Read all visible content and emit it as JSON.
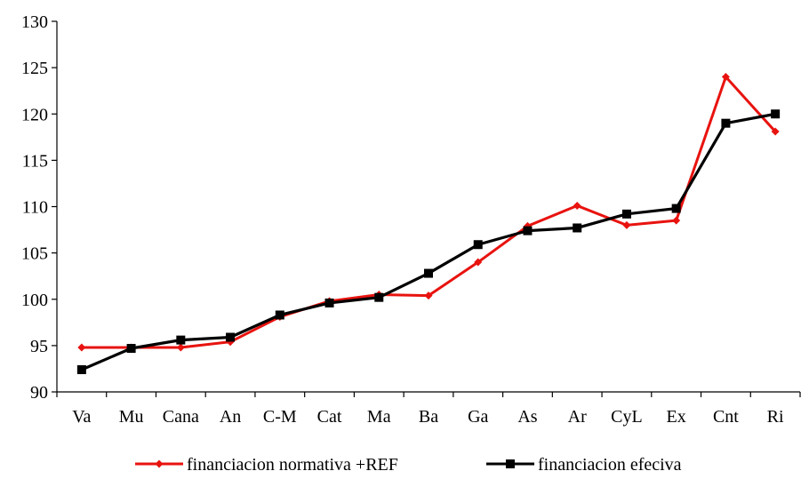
{
  "chart_data": {
    "type": "line",
    "title": "",
    "xlabel": "",
    "ylabel": "",
    "categories": [
      "Va",
      "Mu",
      "Cana",
      "An",
      "C-M",
      "Cat",
      "Ma",
      "Ba",
      "Ga",
      "As",
      "Ar",
      "CyL",
      "Ex",
      "Cnt",
      "Ri"
    ],
    "ylim": [
      90,
      130
    ],
    "yticks": [
      90,
      95,
      100,
      105,
      110,
      115,
      120,
      125,
      130
    ],
    "grid": false,
    "legend_position": "bottom",
    "series": [
      {
        "name": "financiacion normativa +REF",
        "color": "#e8130f",
        "marker": "diamond",
        "values": [
          94.8,
          94.8,
          94.8,
          95.4,
          98.1,
          99.8,
          100.5,
          100.4,
          104.0,
          107.9,
          110.1,
          108.0,
          108.5,
          124.0,
          118.1
        ]
      },
      {
        "name": "financiacion efeciva",
        "color": "#000000",
        "marker": "square",
        "values": [
          92.4,
          94.7,
          95.6,
          95.9,
          98.3,
          99.6,
          100.2,
          102.8,
          105.9,
          107.4,
          107.7,
          109.2,
          109.8,
          119.0,
          120.0
        ]
      }
    ]
  }
}
